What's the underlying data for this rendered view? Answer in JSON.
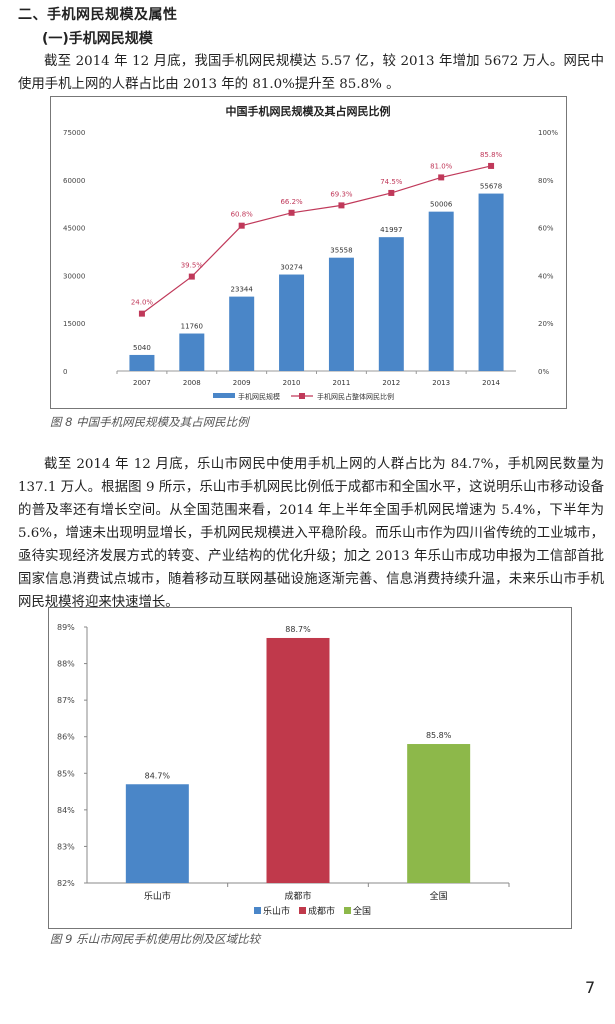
{
  "section": {
    "heading": "二、手机网民规模及属性",
    "subheading": "(一)手机网民规模"
  },
  "paragraphs": [
    "截至 2014 年 12 月底，我国手机网民规模达 5.57 亿，较 2013 年增加 5672 万人。网民中使用手机上网的人群占比由 2013 年的 81.0%提升至 85.8% 。",
    "截至 2014 年 12 月底，乐山市网民中使用手机上网的人群占比为 84.7%，手机网民数量为 137.1 万人。根据图 9 所示，乐山市手机网民比例低于成都市和全国水平，这说明乐山市移动设备的普及率还有增长空间。从全国范围来看，2014 年上半年全国手机网民增速为 5.4%，下半年为 5.6%，增速未出现明显增长，手机网民规模进入平稳阶段。而乐山市作为四川省传统的工业城市，亟待实现经济发展方式的转变、产业结构的优化升级；加之 2013 年乐山市成功申报为工信部首批国家信息消费试点城市，随着移动互联网基础设施逐渐完善、信息消费持续升温，未来乐山市手机网民规模将迎来快速增长。"
  ],
  "captions": {
    "fig8": "图 8 中国手机网民规模及其占网民比例",
    "fig9": "图 9  乐山市网民手机使用比例及区域比较"
  },
  "page_number": "7",
  "colors": {
    "bar_blue": "#4a86c8",
    "line_red": "#c0395a",
    "bar_red": "#c0394b",
    "bar_green": "#8db84a"
  },
  "chart_data": [
    {
      "type": "bar+line",
      "title": "中国手机网民规模及其占网民比例",
      "categories": [
        "2007",
        "2008",
        "2009",
        "2010",
        "2011",
        "2012",
        "2013",
        "2014"
      ],
      "series": [
        {
          "name": "手机网民规模",
          "type": "bar",
          "axis": "left",
          "values": [
            5040,
            11760,
            23344,
            30274,
            35558,
            41997,
            50006,
            55678
          ],
          "labels": [
            "5040",
            "11760",
            "23344",
            "30274",
            "35558",
            "41997",
            "50006",
            "55678"
          ]
        },
        {
          "name": "手机网民占整体网民比例",
          "type": "line",
          "axis": "right",
          "values": [
            24.0,
            39.5,
            60.8,
            66.2,
            69.3,
            74.5,
            81.0,
            85.8
          ],
          "labels": [
            "24.0%",
            "39.5%",
            "60.8%",
            "66.2%",
            "69.3%",
            "74.5%",
            "81.0%",
            "85.8%"
          ]
        }
      ],
      "left_axis": {
        "ticks": [
          "0",
          "15000",
          "30000",
          "45000",
          "60000",
          "75000"
        ],
        "range": [
          0,
          75000
        ]
      },
      "right_axis": {
        "ticks": [
          "0%",
          "20%",
          "40%",
          "60%",
          "80%",
          "100%"
        ],
        "range": [
          0,
          100
        ]
      },
      "legend": [
        "手机网民规模",
        "手机网民占整体网民比例"
      ],
      "legend_position": "bottom"
    },
    {
      "type": "bar",
      "title": "",
      "categories": [
        "乐山市",
        "成都市",
        "全国"
      ],
      "values": [
        84.7,
        88.7,
        85.8
      ],
      "labels": [
        "84.7%",
        "88.7%",
        "85.8%"
      ],
      "ylim": [
        82,
        89
      ],
      "y_ticks": [
        "82%",
        "83%",
        "84%",
        "85%",
        "86%",
        "87%",
        "88%",
        "89%"
      ],
      "legend": [
        "乐山市",
        "成都市",
        "全国"
      ],
      "legend_position": "bottom"
    }
  ]
}
